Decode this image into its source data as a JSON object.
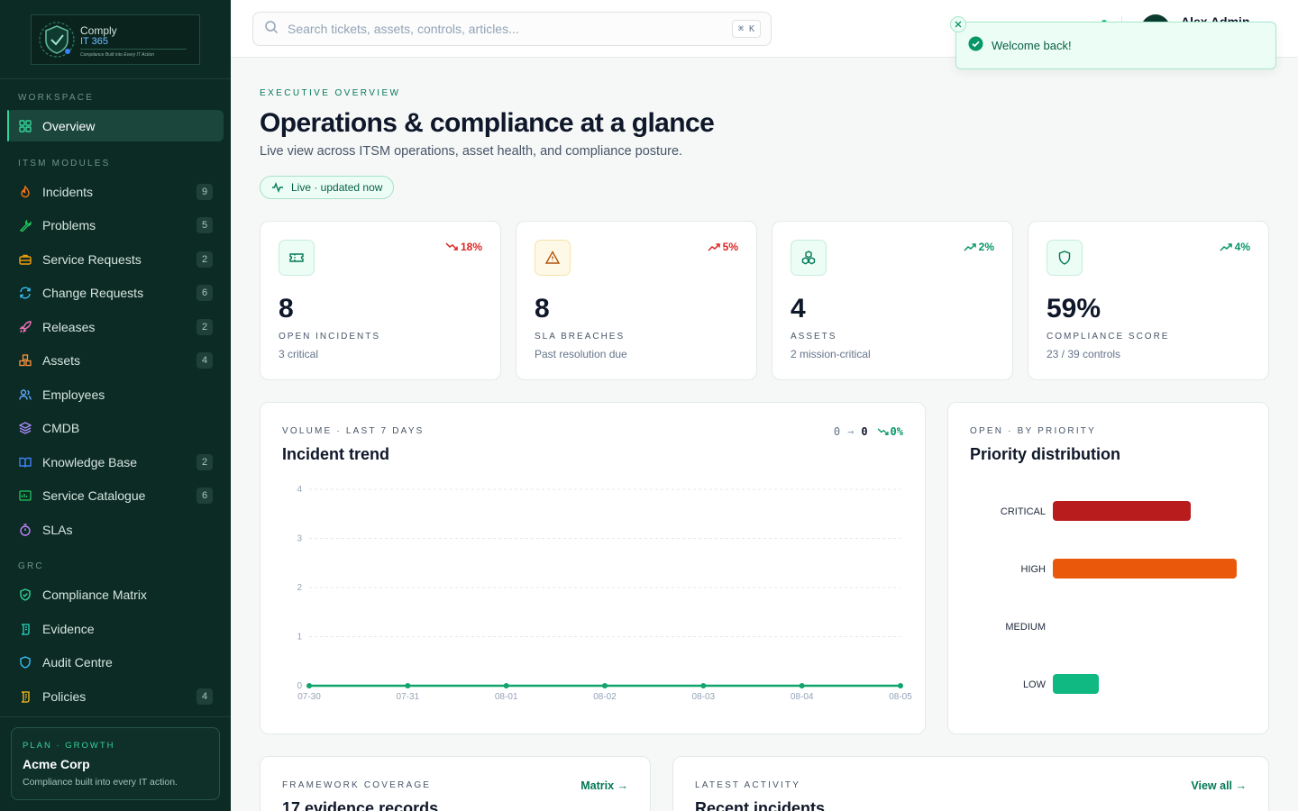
{
  "brand": {
    "name_line1": "Comply",
    "name_line2": "IT 365",
    "tagline": "Compliance Built into Every IT Action"
  },
  "sidebar": {
    "sections": [
      {
        "label": "WORKSPACE"
      },
      {
        "label": "ITSM MODULES"
      },
      {
        "label": "GRC"
      }
    ],
    "items": [
      {
        "label": "Overview",
        "icon": "grid-icon",
        "count": ""
      },
      {
        "label": "Incidents",
        "icon": "flame-icon",
        "count": "9"
      },
      {
        "label": "Problems",
        "icon": "wrench-icon",
        "count": "5"
      },
      {
        "label": "Service Requests",
        "icon": "briefcase-icon",
        "count": "2"
      },
      {
        "label": "Change Requests",
        "icon": "refresh-icon",
        "count": "6"
      },
      {
        "label": "Releases",
        "icon": "rocket-icon",
        "count": "2"
      },
      {
        "label": "Assets",
        "icon": "boxes-icon",
        "count": "4"
      },
      {
        "label": "Employees",
        "icon": "users-icon",
        "count": ""
      },
      {
        "label": "CMDB",
        "icon": "layers-icon",
        "count": ""
      },
      {
        "label": "Knowledge Base",
        "icon": "book-icon",
        "count": "2"
      },
      {
        "label": "Service Catalogue",
        "icon": "catalogue-icon",
        "count": "6"
      },
      {
        "label": "SLAs",
        "icon": "timer-icon",
        "count": ""
      },
      {
        "label": "Compliance Matrix",
        "icon": "shield-check-icon",
        "count": ""
      },
      {
        "label": "Evidence",
        "icon": "scroll-icon",
        "count": ""
      },
      {
        "label": "Audit Centre",
        "icon": "shield-icon",
        "count": ""
      },
      {
        "label": "Policies",
        "icon": "scroll-text-icon",
        "count": "4"
      }
    ],
    "plan": {
      "label": "PLAN · GROWTH",
      "org": "Acme Corp",
      "tagline": "Compliance built into every IT action."
    }
  },
  "topbar": {
    "search_placeholder": "Search tickets, assets, controls, articles...",
    "shortcut": "⌘ K",
    "user_name": "Alex Admin"
  },
  "toast": {
    "message": "Welcome back!"
  },
  "header": {
    "eyebrow": "EXECUTIVE OVERVIEW",
    "title": "Operations & compliance at a glance",
    "subtitle": "Live view across ITSM operations, asset health, and compliance posture.",
    "live_label": "Live · updated now"
  },
  "kpis": [
    {
      "value": "8",
      "label": "OPEN INCIDENTS",
      "sub": "3 critical",
      "trend": "18%",
      "trend_dir": "down",
      "trend_color": "#dc2626",
      "icon": "ticket-icon",
      "icon_bg": "#ecfdf5",
      "icon_color": "#047857"
    },
    {
      "value": "8",
      "label": "SLA BREACHES",
      "sub": "Past resolution due",
      "trend": "5%",
      "trend_dir": "up",
      "trend_color": "#dc2626",
      "icon": "alert-triangle-icon",
      "icon_bg": "#fef9e7",
      "icon_color": "#b45309"
    },
    {
      "value": "4",
      "label": "ASSETS",
      "sub": "2 mission-critical",
      "trend": "2%",
      "trend_dir": "up",
      "trend_color": "#059669",
      "icon": "boxes-icon",
      "icon_bg": "#ecfdf5",
      "icon_color": "#047857"
    },
    {
      "value": "59%",
      "label": "COMPLIANCE SCORE",
      "sub": "23 / 39 controls",
      "trend": "4%",
      "trend_dir": "up",
      "trend_color": "#059669",
      "icon": "shield-icon",
      "icon_bg": "#ecfdf5",
      "icon_color": "#047857"
    }
  ],
  "incident_trend": {
    "eyebrow": "VOLUME · LAST 7 DAYS",
    "title": "Incident trend",
    "summary_from": "0",
    "summary_arrow": "→",
    "summary_to": "0",
    "summary_change": "0%"
  },
  "priority": {
    "eyebrow": "OPEN · BY PRIORITY",
    "title": "Priority distribution"
  },
  "framework": {
    "eyebrow": "FRAMEWORK COVERAGE",
    "title": "17 evidence records",
    "link": "Matrix →"
  },
  "activity": {
    "eyebrow": "LATEST ACTIVITY",
    "title": "Recent incidents",
    "link": "View all →"
  },
  "chart_data": [
    {
      "type": "line",
      "x": [
        "07-30",
        "07-31",
        "08-01",
        "08-02",
        "08-03",
        "08-04",
        "08-05"
      ],
      "series": [
        {
          "values": [
            0,
            0,
            0,
            0,
            0,
            0,
            0
          ]
        }
      ],
      "yticks": [
        "0",
        "1",
        "2",
        "3",
        "4"
      ],
      "ylim": [
        0,
        4
      ],
      "color": "#10a56f",
      "grid": true
    },
    {
      "type": "bar",
      "orientation": "horizontal",
      "categories": [
        "CRITICAL",
        "HIGH",
        "MEDIUM",
        "LOW"
      ],
      "values": [
        3,
        4,
        0,
        1
      ],
      "max": 4,
      "colors": [
        "#b91c1c",
        "#ea580c",
        "#f59e0b",
        "#10b981"
      ]
    }
  ]
}
